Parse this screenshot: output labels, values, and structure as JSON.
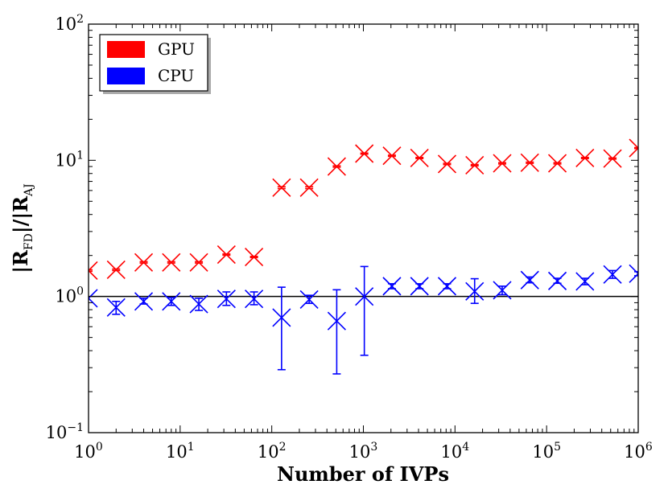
{
  "chart_data": {
    "type": "scatter",
    "title": "",
    "xlabel": "Number of IVPs",
    "ylabel": "|R_FD|/|R_AJ|",
    "ylabel_parts": {
      "bar": "|",
      "R": "R",
      "FD": "FD",
      "slash": "/",
      "AJ": "AJ"
    },
    "x_scale": "log",
    "y_scale": "log",
    "xlim": [
      1,
      1000000
    ],
    "ylim": [
      0.1,
      100
    ],
    "x_ticks": [
      {
        "base": "10",
        "exp": "0",
        "value": 1
      },
      {
        "base": "10",
        "exp": "1",
        "value": 10
      },
      {
        "base": "10",
        "exp": "2",
        "value": 100
      },
      {
        "base": "10",
        "exp": "3",
        "value": 1000
      },
      {
        "base": "10",
        "exp": "4",
        "value": 10000
      },
      {
        "base": "10",
        "exp": "5",
        "value": 100000
      },
      {
        "base": "10",
        "exp": "6",
        "value": 1000000
      }
    ],
    "y_ticks": [
      {
        "base": "10",
        "exp": "−1",
        "value": 0.1
      },
      {
        "base": "10",
        "exp": "0",
        "value": 1
      },
      {
        "base": "10",
        "exp": "1",
        "value": 10
      },
      {
        "base": "10",
        "exp": "2",
        "value": 100
      }
    ],
    "reference_line": {
      "y": 1,
      "color": "#000000"
    },
    "legend_position": "top-left",
    "grid": false,
    "series": [
      {
        "name": "GPU",
        "color": "#ff0000",
        "marker": "x",
        "x": [
          1,
          2,
          4,
          8,
          16,
          32,
          64,
          128,
          256,
          512,
          1024,
          2048,
          4096,
          8192,
          16384,
          32768,
          65536,
          131072,
          262144,
          524288,
          1000000
        ],
        "y": [
          1.55,
          1.57,
          1.78,
          1.78,
          1.78,
          2.03,
          1.95,
          6.3,
          6.3,
          9.0,
          11.2,
          10.8,
          10.4,
          9.4,
          9.2,
          9.5,
          9.6,
          9.5,
          10.4,
          10.3,
          12.3
        ],
        "yerr": [
          0.02,
          0.02,
          0.02,
          0.02,
          0.02,
          0.02,
          0.02,
          0.1,
          0.1,
          0.1,
          0.1,
          0.1,
          0.1,
          0.1,
          0.1,
          0.1,
          0.1,
          0.1,
          0.1,
          0.1,
          0.1
        ]
      },
      {
        "name": "CPU",
        "color": "#0000ff",
        "marker": "x",
        "x": [
          1,
          2,
          4,
          8,
          16,
          32,
          64,
          128,
          256,
          512,
          1024,
          2048,
          4096,
          8192,
          16384,
          32768,
          65536,
          131072,
          262144,
          524288,
          1000000
        ],
        "y": [
          0.97,
          0.83,
          0.92,
          0.92,
          0.88,
          0.96,
          0.96,
          0.7,
          0.95,
          0.66,
          1.0,
          1.19,
          1.19,
          1.19,
          1.09,
          1.11,
          1.32,
          1.3,
          1.29,
          1.45,
          1.47
        ],
        "ylow": [
          0.97,
          0.74,
          0.88,
          0.86,
          0.79,
          0.86,
          0.87,
          0.29,
          0.89,
          0.27,
          0.37,
          1.14,
          1.14,
          1.14,
          0.89,
          1.03,
          1.26,
          1.25,
          1.22,
          1.36,
          1.42
        ],
        "yhigh": [
          0.97,
          0.92,
          0.97,
          0.98,
          0.97,
          1.08,
          1.08,
          1.17,
          1.02,
          1.12,
          1.66,
          1.24,
          1.24,
          1.24,
          1.35,
          1.19,
          1.39,
          1.36,
          1.36,
          1.55,
          1.52
        ]
      }
    ]
  }
}
